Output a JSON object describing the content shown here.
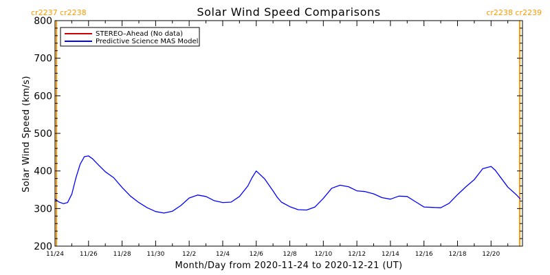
{
  "chart_data": {
    "type": "line",
    "title": "Solar Wind Speed Comparisons",
    "xlabel": "Month/Day from 2020-11-24 to 2020-12-21 (UT)",
    "ylabel": "Solar Wind Speed (km/s)",
    "ylim": [
      200,
      800
    ],
    "xlim": [
      "2020-11-24",
      "2020-12-21 21:00"
    ],
    "grid": false,
    "legend_position": "top-left",
    "x_tick_labels": [
      "11/24",
      "11/26",
      "11/28",
      "11/30",
      "12/2",
      "12/4",
      "12/6",
      "12/8",
      "12/10",
      "12/12",
      "12/14",
      "12/16",
      "12/18",
      "12/20"
    ],
    "y_tick_labels": [
      "200",
      "300",
      "400",
      "500",
      "600",
      "700",
      "800"
    ],
    "carrington_markers": [
      {
        "x": "2020-11-24 02:00",
        "label": "cr2237 cr2238",
        "color": "#ff9900",
        "side": "left"
      },
      {
        "x": "2020-12-21 17:00",
        "label": "cr2238 cr2239",
        "color": "#ff9900",
        "side": "right"
      }
    ],
    "series": [
      {
        "name": "STEREO–Ahead (No data)",
        "color": "#cc0000",
        "values": []
      },
      {
        "name": "Predictive Science MAS Model",
        "color": "#0000ff",
        "x": [
          "2020-11-24 00:00",
          "2020-11-24 06:00",
          "2020-11-24 12:00",
          "2020-11-24 18:00",
          "2020-11-25 00:00",
          "2020-11-25 06:00",
          "2020-11-25 12:00",
          "2020-11-25 18:00",
          "2020-11-26 00:00",
          "2020-11-26 06:00",
          "2020-11-26 12:00",
          "2020-11-27 00:00",
          "2020-11-27 12:00",
          "2020-11-28 00:00",
          "2020-11-28 12:00",
          "2020-11-29 00:00",
          "2020-11-29 12:00",
          "2020-11-30 00:00",
          "2020-11-30 12:00",
          "2020-12-01 00:00",
          "2020-12-01 12:00",
          "2020-12-02 00:00",
          "2020-12-02 12:00",
          "2020-12-03 00:00",
          "2020-12-03 12:00",
          "2020-12-04 00:00",
          "2020-12-04 12:00",
          "2020-12-05 00:00",
          "2020-12-05 12:00",
          "2020-12-05 18:00",
          "2020-12-06 00:00",
          "2020-12-06 12:00",
          "2020-12-07 00:00",
          "2020-12-07 06:00",
          "2020-12-07 12:00",
          "2020-12-08 00:00",
          "2020-12-08 12:00",
          "2020-12-09 00:00",
          "2020-12-09 12:00",
          "2020-12-10 00:00",
          "2020-12-10 12:00",
          "2020-12-11 00:00",
          "2020-12-11 12:00",
          "2020-12-12 00:00",
          "2020-12-12 12:00",
          "2020-12-13 00:00",
          "2020-12-13 12:00",
          "2020-12-14 00:00",
          "2020-12-14 12:00",
          "2020-12-15 00:00",
          "2020-12-15 12:00",
          "2020-12-16 00:00",
          "2020-12-16 12:00",
          "2020-12-17 00:00",
          "2020-12-17 12:00",
          "2020-12-18 00:00",
          "2020-12-18 12:00",
          "2020-12-19 00:00",
          "2020-12-19 12:00",
          "2020-12-20 00:00",
          "2020-12-20 06:00",
          "2020-12-20 12:00",
          "2020-12-21 00:00",
          "2020-12-21 12:00",
          "2020-12-21 18:00"
        ],
        "values": [
          325,
          317,
          313,
          316,
          338,
          382,
          418,
          438,
          440,
          432,
          420,
          398,
          382,
          356,
          333,
          316,
          302,
          292,
          288,
          293,
          308,
          328,
          336,
          332,
          321,
          316,
          317,
          332,
          360,
          382,
          400,
          379,
          347,
          330,
          317,
          305,
          297,
          296,
          304,
          327,
          354,
          362,
          358,
          347,
          345,
          339,
          329,
          325,
          333,
          332,
          318,
          304,
          303,
          302,
          314,
          337,
          358,
          377,
          406,
          412,
          402,
          387,
          357,
          337,
          325
        ]
      }
    ]
  }
}
